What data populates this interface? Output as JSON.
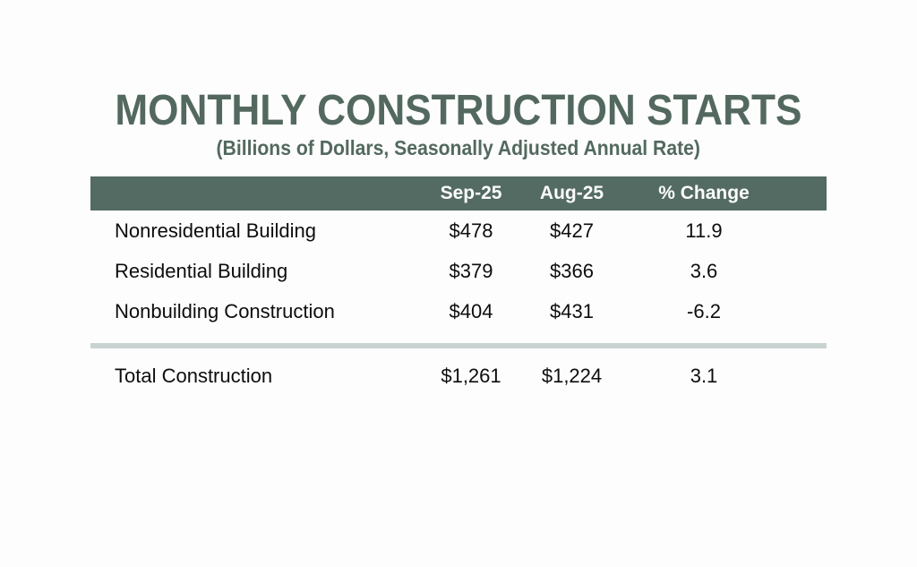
{
  "page": {
    "title": "MONTHLY CONSTRUCTION STARTS",
    "subtitle": "(Billions of Dollars, Seasonally Adjusted Annual Rate)"
  },
  "table": {
    "columns": [
      "",
      "Sep-25",
      "Aug-25",
      "% Change"
    ],
    "rows": [
      {
        "label": "Nonresidential Building",
        "sep25": "$478",
        "aug25": "$427",
        "pct_change": "11.9"
      },
      {
        "label": "Residential Building",
        "sep25": "$379",
        "aug25": "$366",
        "pct_change": "3.6"
      },
      {
        "label": "Nonbuilding Construction",
        "sep25": "$404",
        "aug25": "$431",
        "pct_change": "-6.2"
      }
    ],
    "total_row": {
      "label": "Total Construction",
      "sep25": "$1,261",
      "aug25": "$1,224",
      "pct_change": "3.1"
    }
  },
  "colors": {
    "accent_slate_green": "#53695f",
    "header_bar_bg": "#536b63",
    "header_bar_text": "#fcfcfc",
    "divider": "#c9d4d2",
    "body_text": "#0d0d0d",
    "background": "#fdfdfd"
  },
  "chart_data": {
    "type": "table",
    "title": "MONTHLY CONSTRUCTION STARTS",
    "subtitle": "(Billions of Dollars, Seasonally Adjusted Annual Rate)",
    "units": "Billions of Dollars, Seasonally Adjusted Annual Rate",
    "columns": [
      "Sep-25",
      "Aug-25",
      "% Change"
    ],
    "rows": [
      {
        "category": "Nonresidential Building",
        "sep_25": 478,
        "aug_25": 427,
        "pct_change": 11.9
      },
      {
        "category": "Residential Building",
        "sep_25": 379,
        "aug_25": 366,
        "pct_change": 3.6
      },
      {
        "category": "Nonbuilding Construction",
        "sep_25": 404,
        "aug_25": 431,
        "pct_change": -6.2
      },
      {
        "category": "Total Construction",
        "sep_25": 1261,
        "aug_25": 1224,
        "pct_change": 3.1
      }
    ]
  }
}
